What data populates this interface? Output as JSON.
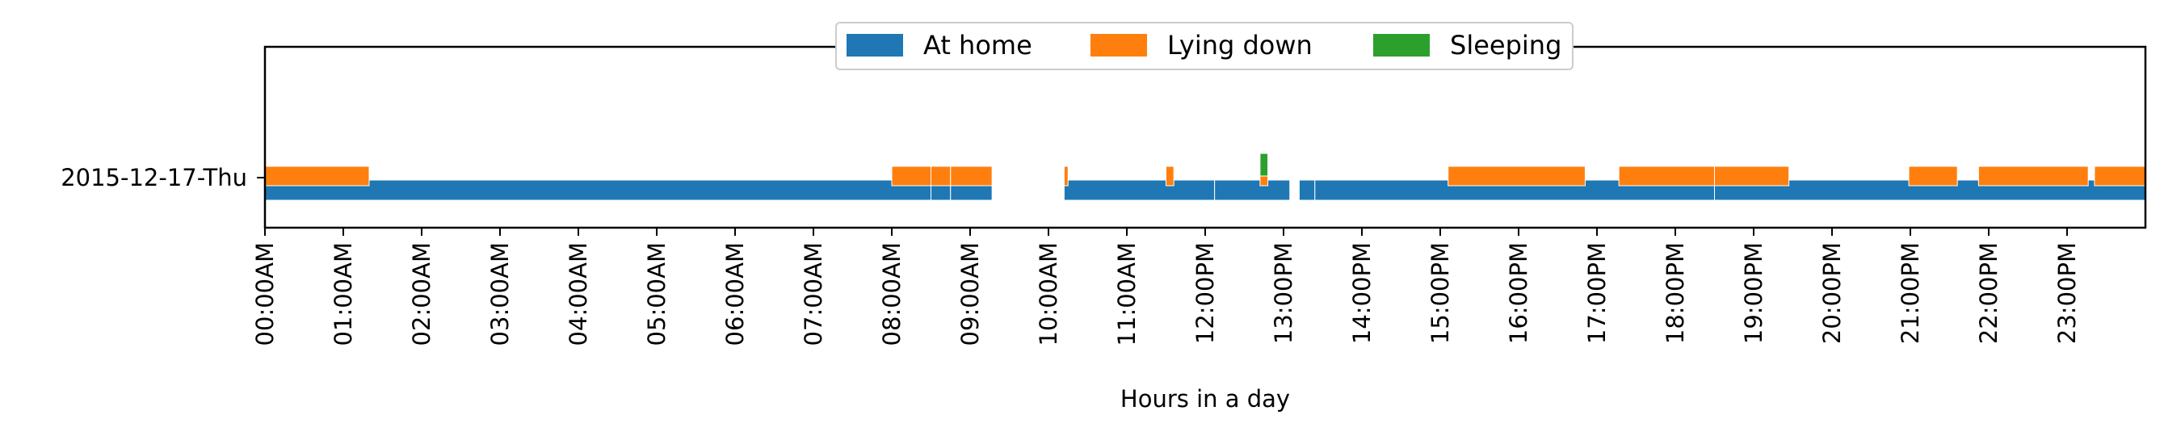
{
  "chart_data": {
    "type": "timeline",
    "xlabel": "Hours in a day",
    "xlim": [
      0,
      24
    ],
    "x_ticks": [
      "00:00AM",
      "01:00AM",
      "02:00AM",
      "03:00AM",
      "04:00AM",
      "05:00AM",
      "06:00AM",
      "07:00AM",
      "08:00AM",
      "09:00AM",
      "10:00AM",
      "11:00AM",
      "12:00PM",
      "13:00PM",
      "14:00PM",
      "15:00PM",
      "16:00PM",
      "17:00PM",
      "18:00PM",
      "19:00PM",
      "20:00PM",
      "21:00PM",
      "22:00PM",
      "23:00PM"
    ],
    "rows": [
      "2015-12-17-Thu"
    ],
    "legend": {
      "placement": "top-center"
    },
    "series": [
      {
        "name": "At home",
        "color": "#1f77b4",
        "intervals": [
          [
            0.0,
            8.5
          ],
          [
            8.5,
            8.75
          ],
          [
            8.75,
            9.28
          ],
          [
            10.2,
            12.12
          ],
          [
            12.12,
            13.08
          ],
          [
            13.2,
            13.4
          ],
          [
            13.4,
            18.5
          ],
          [
            18.5,
            24.0
          ]
        ]
      },
      {
        "name": "Lying down",
        "color": "#ff7f0e",
        "intervals": [
          [
            0.0,
            1.33
          ],
          [
            8.0,
            8.5
          ],
          [
            8.5,
            8.75
          ],
          [
            8.75,
            9.28
          ],
          [
            10.2,
            10.25
          ],
          [
            11.5,
            11.6
          ],
          [
            12.7,
            12.8
          ],
          [
            15.1,
            16.85
          ],
          [
            17.28,
            18.5
          ],
          [
            18.5,
            19.45
          ],
          [
            20.98,
            21.6
          ],
          [
            21.87,
            23.27
          ],
          [
            23.35,
            24.0
          ]
        ]
      },
      {
        "name": "Sleeping",
        "color": "#2ca02c",
        "intervals": [
          [
            12.7,
            12.8
          ]
        ]
      }
    ]
  }
}
